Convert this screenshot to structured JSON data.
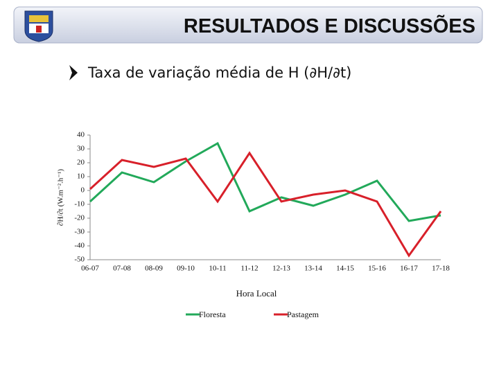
{
  "header": {
    "title": "RESULTADOS E DISCUSSÕES"
  },
  "subtitle": "Taxa de variação média de H (∂H/∂t)",
  "chart_data": {
    "type": "line",
    "xlabel": "Hora Local",
    "ylabel": "∂H/∂t (W.m⁻².h⁻¹)",
    "categories": [
      "06-07",
      "07-08",
      "08-09",
      "09-10",
      "10-11",
      "11-12",
      "12-13",
      "13-14",
      "14-15",
      "15-16",
      "16-17",
      "17-18"
    ],
    "series": [
      {
        "name": "Floresta",
        "color": "#22a95a",
        "values": [
          -8,
          13,
          6,
          21,
          34,
          -15,
          -5,
          -11,
          -3,
          7,
          -22,
          -18
        ]
      },
      {
        "name": "Pastagem",
        "color": "#d8202a",
        "values": [
          1,
          22,
          17,
          23,
          -8,
          27,
          -8,
          -3,
          0,
          -8,
          -47,
          -15
        ]
      }
    ],
    "ylim": [
      -50,
      40
    ],
    "yticks": [
      -50,
      -40,
      -30,
      -20,
      -10,
      0,
      10,
      20,
      30,
      40
    ],
    "grid": false,
    "legend": "bottom"
  }
}
